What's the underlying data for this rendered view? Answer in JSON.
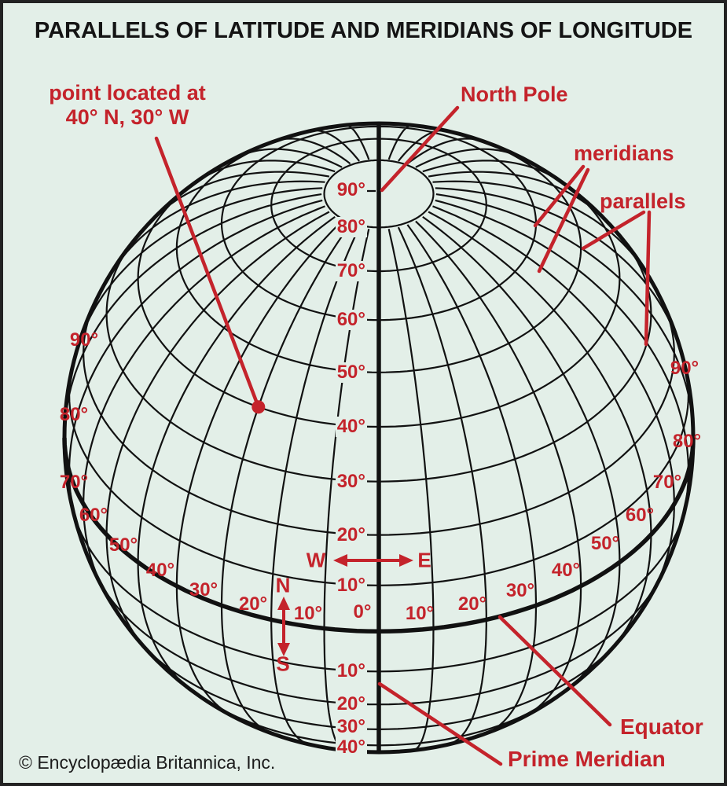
{
  "title": "PARALLELS OF LATITUDE AND MERIDIANS OF LONGITUDE",
  "copyright": "© Encyclopædia Britannica, Inc.",
  "colors": {
    "background": "#e3efe8",
    "line": "#111111",
    "red": "#c4232b",
    "title_color": "#141414"
  },
  "annotations": {
    "point_label_line1": "point located at",
    "point_label_line2": "40° N, 30° W",
    "north_pole": "North Pole",
    "meridians": "meridians",
    "parallels": "parallels",
    "equator": "Equator",
    "prime_meridian": "Prime Meridian"
  },
  "compass": {
    "west": "W",
    "east": "E",
    "north": "N",
    "south": "S"
  },
  "latitude_labels_north": [
    "90°",
    "80°",
    "70°",
    "60°",
    "50°",
    "40°",
    "30°",
    "20°",
    "10°"
  ],
  "latitude_labels_south": [
    "10°",
    "20°",
    "30°",
    "40°"
  ],
  "longitude_label_zero": "0°",
  "longitude_labels_west": [
    "90°",
    "80°",
    "70°",
    "60°",
    "50°",
    "40°",
    "30°",
    "20°",
    "10°"
  ],
  "longitude_labels_east": [
    "10°",
    "20°",
    "30°",
    "40°",
    "50°",
    "60°",
    "70°",
    "80°",
    "90°"
  ],
  "marked_point": {
    "latitude": "40° N",
    "longitude": "30° W"
  }
}
